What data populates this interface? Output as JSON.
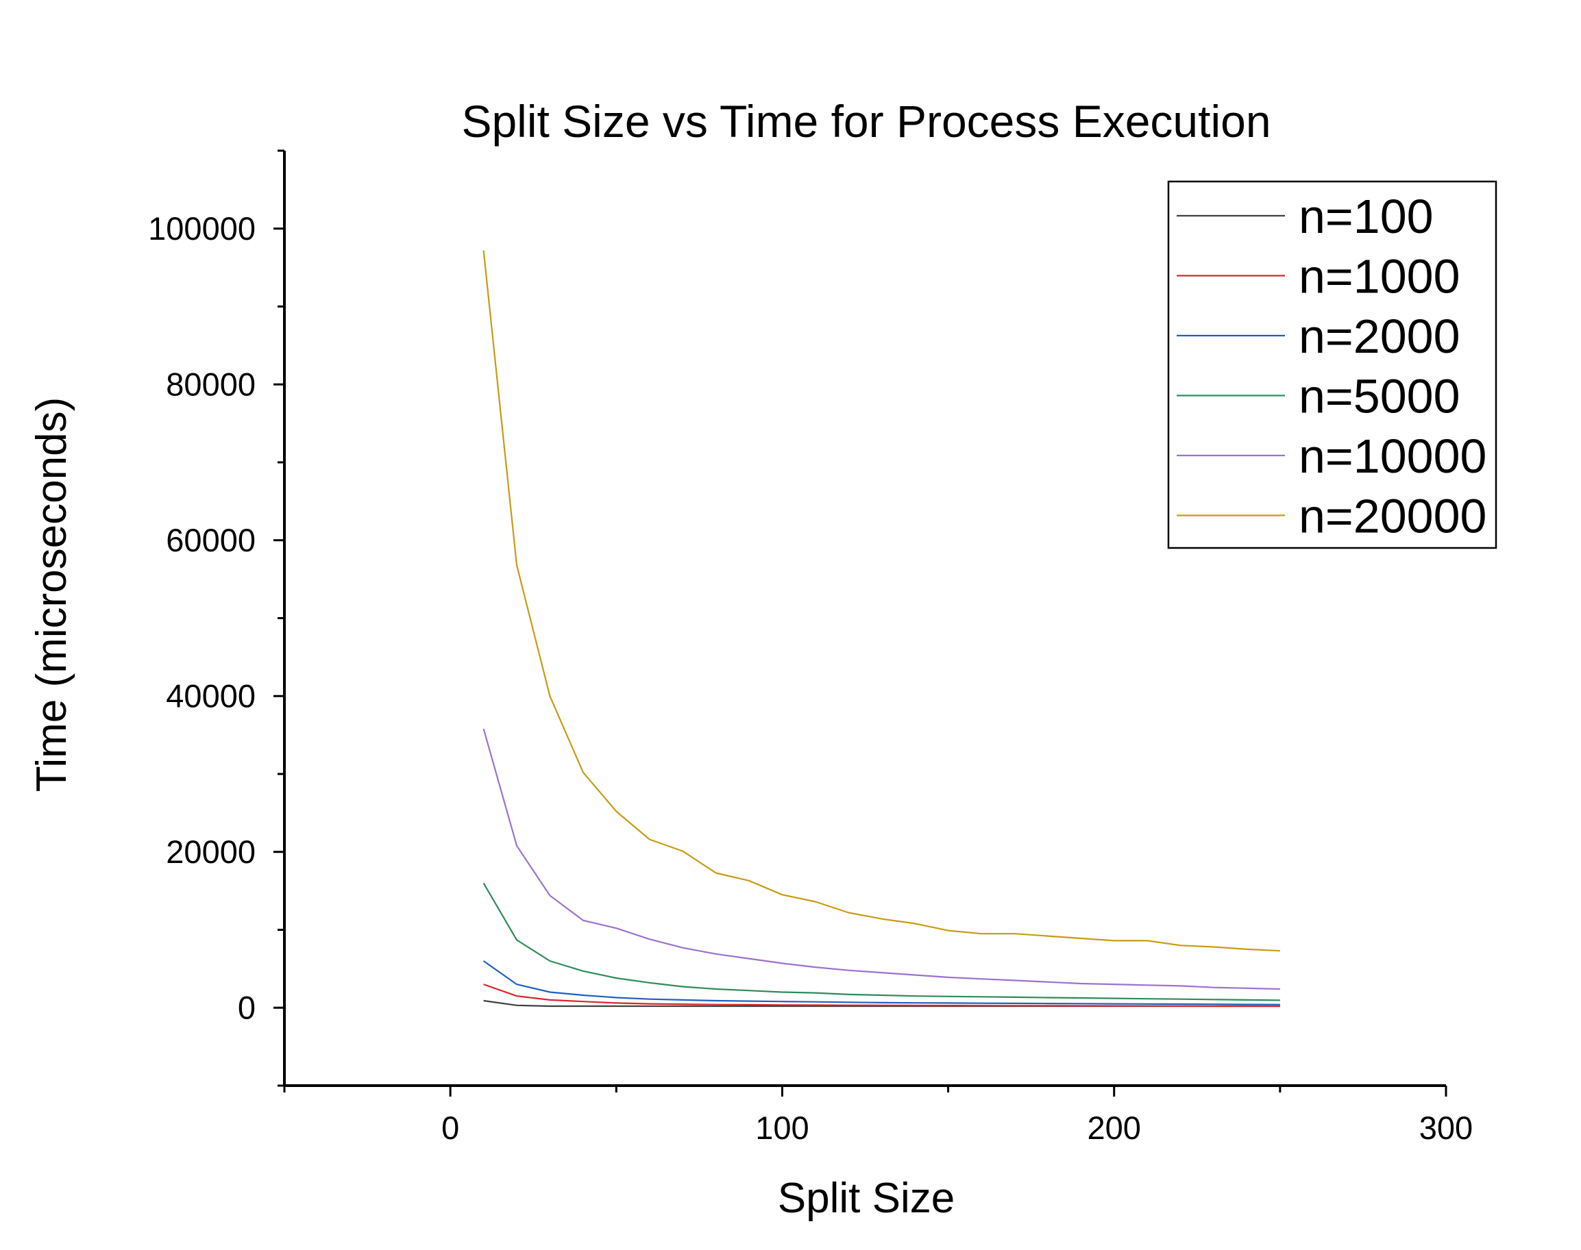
{
  "chart_data": {
    "type": "line",
    "title": "Split Size vs Time for Process Execution",
    "xlabel": "Split Size",
    "ylabel": "Time (microseconds)",
    "xlim": [
      -50,
      300
    ],
    "ylim": [
      -10000,
      110000
    ],
    "x_ticks": [
      0,
      100,
      200,
      300
    ],
    "x_tick_labels": [
      "0",
      "100",
      "200",
      "300"
    ],
    "x_minor_ticks": [
      -50,
      50,
      150,
      250
    ],
    "y_ticks": [
      0,
      20000,
      40000,
      60000,
      80000,
      100000
    ],
    "y_tick_labels": [
      "0",
      "20000",
      "40000",
      "60000",
      "80000",
      "100000"
    ],
    "y_minor_ticks": [
      -10000,
      10000,
      30000,
      50000,
      70000,
      90000,
      110000
    ],
    "grid": false,
    "legend_position": "top-right",
    "x": [
      10,
      20,
      30,
      40,
      50,
      60,
      70,
      80,
      90,
      100,
      110,
      120,
      130,
      140,
      150,
      160,
      170,
      180,
      190,
      200,
      210,
      220,
      230,
      240,
      250
    ],
    "series": [
      {
        "name": "n=100",
        "color": "#404040",
        "values": [
          900,
          300,
          200,
          200,
          200,
          200,
          200,
          200,
          200,
          200,
          200,
          200,
          200,
          200,
          200,
          200,
          200,
          200,
          200,
          200,
          200,
          200,
          200,
          200,
          200
        ]
      },
      {
        "name": "n=1000",
        "color": "#d62728",
        "values": [
          3000,
          1500,
          1000,
          800,
          600,
          500,
          450,
          400,
          380,
          350,
          330,
          310,
          300,
          290,
          280,
          270,
          260,
          250,
          240,
          230,
          220,
          210,
          200,
          200,
          200
        ]
      },
      {
        "name": "n=2000",
        "color": "#1f5fbf",
        "values": [
          6000,
          3000,
          2000,
          1600,
          1300,
          1100,
          1000,
          900,
          850,
          800,
          750,
          700,
          650,
          620,
          600,
          580,
          560,
          540,
          520,
          500,
          480,
          460,
          440,
          420,
          400
        ]
      },
      {
        "name": "n=5000",
        "color": "#2e8b57",
        "values": [
          16000,
          8700,
          6000,
          4700,
          3800,
          3200,
          2700,
          2400,
          2200,
          2000,
          1900,
          1700,
          1600,
          1500,
          1450,
          1400,
          1350,
          1300,
          1250,
          1200,
          1150,
          1100,
          1050,
          1000,
          950
        ]
      },
      {
        "name": "n=10000",
        "color": "#9b72cf",
        "values": [
          35800,
          20800,
          14400,
          11200,
          10200,
          8800,
          7700,
          6900,
          6300,
          5700,
          5200,
          4800,
          4500,
          4200,
          3900,
          3700,
          3500,
          3300,
          3100,
          3000,
          2900,
          2800,
          2600,
          2500,
          2400
        ]
      },
      {
        "name": "n=20000",
        "color": "#c89b12",
        "values": [
          97200,
          56800,
          40000,
          30200,
          25200,
          21600,
          20100,
          17300,
          16300,
          14500,
          13600,
          12200,
          11400,
          10800,
          9900,
          9500,
          9500,
          9200,
          8900,
          8600,
          8600,
          8000,
          7800,
          7500,
          7300
        ]
      }
    ]
  }
}
